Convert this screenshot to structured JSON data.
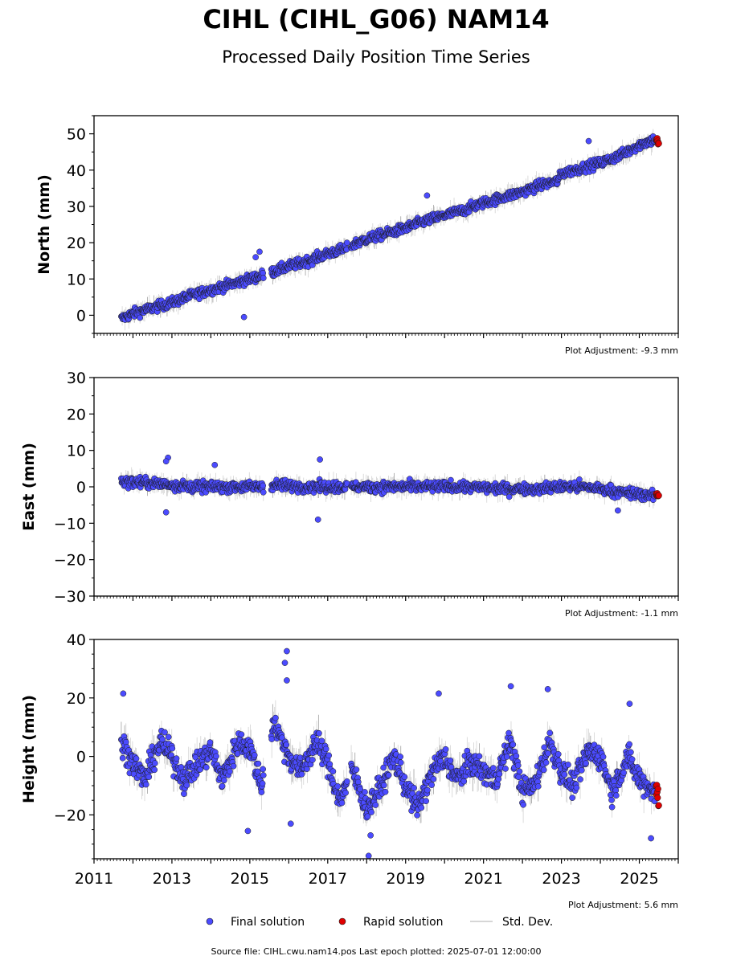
{
  "header": {
    "title": "CIHL (CIHL_G06) NAM14",
    "subtitle": "Processed Daily Position Time Series"
  },
  "legend": {
    "final": "Final solution",
    "rapid": "Rapid solution",
    "std": "Std. Dev."
  },
  "footer": {
    "source": "Source file: CIHL.cwu.nam14.pos  Last epoch plotted: 2025-07-01 12:00:00"
  },
  "colors": {
    "final": "#4b4bff",
    "rapid": "#e00000",
    "std": "#c8c8c8",
    "edge": "#1a1a1a"
  },
  "chart_data": [
    {
      "type": "scatter",
      "ylabel": "North (mm)",
      "adjustment": "Plot Adjustment: -9.3 mm",
      "xlim": [
        2011.0,
        2026.0
      ],
      "ylim": [
        -5,
        55
      ],
      "yticks": [
        0,
        10,
        20,
        30,
        40,
        50
      ],
      "ytick_labels": [
        "0",
        "10",
        "20",
        "30",
        "40",
        "50"
      ],
      "gaps": [
        [
          2015.35,
          2015.55
        ],
        [
          2017.5,
          2017.6
        ]
      ],
      "series": [
        {
          "kind": "final",
          "x": [
            2011.7,
            2012.0,
            2012.5,
            2013.0,
            2013.5,
            2014.0,
            2014.5,
            2015.0,
            2015.3,
            2015.6,
            2016.0,
            2016.5,
            2017.0,
            2017.5,
            2017.65,
            2018.0,
            2018.5,
            2019.0,
            2019.5,
            2020.0,
            2020.5,
            2021.0,
            2021.5,
            2022.0,
            2022.5,
            2022.9,
            2023.0,
            2023.5,
            2024.0,
            2024.5,
            2025.0,
            2025.4
          ],
          "y": [
            -1,
            0.5,
            2,
            3.5,
            5.5,
            7,
            8.5,
            10,
            11,
            12,
            13.5,
            15,
            17,
            18.5,
            19.5,
            21,
            22.5,
            24,
            26,
            27.5,
            29,
            31,
            32.5,
            34,
            36,
            37,
            39,
            40.5,
            42,
            44,
            47,
            48.5
          ]
        },
        {
          "kind": "rapid",
          "x": [
            2025.43,
            2025.5
          ],
          "y": [
            48.5,
            47.5
          ]
        }
      ],
      "outliers": {
        "x": [
          2014.85,
          2015.15,
          2015.25,
          2019.55,
          2023.7
        ],
        "y": [
          -0.5,
          16,
          17.5,
          33,
          48
        ]
      }
    },
    {
      "type": "scatter",
      "ylabel": "East (mm)",
      "adjustment": "Plot Adjustment: -1.1 mm",
      "xlim": [
        2011.0,
        2026.0
      ],
      "ylim": [
        -30,
        30
      ],
      "yticks": [
        -30,
        -20,
        -10,
        0,
        10,
        20,
        30
      ],
      "ytick_labels": [
        "−30",
        "−20",
        "−10",
        "0",
        "10",
        "20",
        "30"
      ],
      "gaps": [
        [
          2015.35,
          2015.55
        ],
        [
          2017.5,
          2017.6
        ]
      ],
      "series": [
        {
          "kind": "final",
          "x": [
            2011.7,
            2012.5,
            2013.5,
            2014.5,
            2015.3,
            2015.6,
            2016.5,
            2017.5,
            2017.65,
            2018.5,
            2019.5,
            2020.5,
            2021.5,
            2022.5,
            2022.9,
            2023.0,
            2023.5,
            2024.0,
            2024.5,
            2025.0,
            2025.4
          ],
          "y": [
            1.5,
            1,
            0,
            0,
            0,
            0.5,
            0,
            0,
            0,
            0,
            0,
            0,
            -0.5,
            -0.5,
            0,
            0,
            0,
            -0.5,
            -1.5,
            -2,
            -2.5
          ]
        },
        {
          "kind": "rapid",
          "x": [
            2025.43,
            2025.5
          ],
          "y": [
            -1.5,
            -3
          ]
        }
      ],
      "outliers": {
        "x": [
          2012.9,
          2012.85,
          2014.1,
          2016.75,
          2016.8,
          2024.45,
          2012.85
        ],
        "y": [
          8,
          7,
          6,
          -9,
          7.5,
          -6.5,
          -7
        ]
      }
    },
    {
      "type": "scatter",
      "ylabel": "Height (mm)",
      "adjustment": "Plot Adjustment: 5.6 mm",
      "xlim": [
        2011.0,
        2026.0
      ],
      "ylim": [
        -35,
        40
      ],
      "yticks": [
        -20,
        0,
        20,
        40
      ],
      "ytick_labels": [
        "−20",
        "0",
        "20",
        "40"
      ],
      "xticks": [
        2011,
        2013,
        2015,
        2017,
        2019,
        2021,
        2023,
        2025
      ],
      "xtick_labels": [
        "2011",
        "2013",
        "2015",
        "2017",
        "2019",
        "2021",
        "2023",
        "2025"
      ],
      "gaps": [
        [
          2015.35,
          2015.55
        ],
        [
          2017.5,
          2017.6
        ]
      ],
      "series": [
        {
          "kind": "final",
          "x": [
            2011.7,
            2012.0,
            2012.3,
            2012.7,
            2013.0,
            2013.3,
            2013.7,
            2014.0,
            2014.3,
            2014.7,
            2015.0,
            2015.3,
            2015.6,
            2016.0,
            2016.3,
            2016.7,
            2017.0,
            2017.3,
            2017.65,
            2018.0,
            2018.3,
            2018.7,
            2019.0,
            2019.3,
            2019.7,
            2020.0,
            2020.3,
            2020.7,
            2021.0,
            2021.3,
            2021.7,
            2022.0,
            2022.3,
            2022.7,
            2023.0,
            2023.3,
            2023.7,
            2024.0,
            2024.3,
            2024.7,
            2025.0,
            2025.4
          ],
          "y": [
            5,
            -2,
            -8,
            5,
            0,
            -8,
            -2,
            2,
            -8,
            5,
            3,
            -10,
            12,
            0,
            -5,
            5,
            -2,
            -15,
            -5,
            -18,
            -12,
            0,
            -10,
            -18,
            -5,
            0,
            -8,
            -2,
            -5,
            -8,
            5,
            -12,
            -10,
            5,
            -5,
            -10,
            2,
            0,
            -12,
            0,
            -8,
            -12
          ]
        },
        {
          "kind": "rapid",
          "x": [
            2025.43,
            2025.5
          ],
          "y": [
            -10,
            -16
          ]
        }
      ],
      "outliers": {
        "x": [
          2011.75,
          2014.95,
          2015.95,
          2015.9,
          2015.95,
          2018.05,
          2019.85,
          2021.7,
          2022.65,
          2024.75,
          2025.3,
          2016.05,
          2018.1
        ],
        "y": [
          21.5,
          -25.5,
          36,
          32,
          26,
          -34,
          21.5,
          24,
          23,
          18,
          -28,
          -23,
          -27
        ]
      }
    }
  ]
}
